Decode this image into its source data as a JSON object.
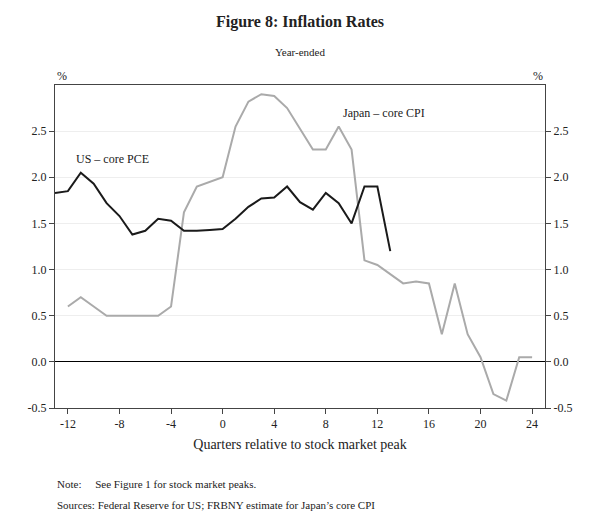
{
  "chart_data": {
    "type": "line",
    "title": "Figure 8: Inflation Rates",
    "subtitle": "Year-ended",
    "xlabel": "Quarters relative to stock market peak",
    "ylabel": "%",
    "y2label": "%",
    "note": "Note:     See Figure 1 for stock market peaks.",
    "sources": "Sources: Federal Reserve for US; FRBNY estimate for Japan’s core CPI",
    "xlim": [
      -13,
      25
    ],
    "ylim": [
      -0.5,
      3.0
    ],
    "y2lim": [
      -0.5,
      3.0
    ],
    "xticks": [
      -12,
      -8,
      -4,
      0,
      4,
      8,
      12,
      16,
      20,
      24
    ],
    "yticks": [
      -0.5,
      {
        "value": 0.0,
        "label": "0.0"
      },
      0.5,
      {
        "value": 1.0,
        "label": "1.0"
      },
      1.5,
      {
        "value": 2.0,
        "label": "2.0"
      },
      2.5
    ],
    "y2ticks": [
      -0.5,
      {
        "value": 0.0,
        "label": "0.0"
      },
      0.5,
      {
        "value": 1.0,
        "label": "1.0"
      },
      1.5,
      {
        "value": 2.0,
        "label": "2.0"
      },
      2.5
    ],
    "grid": "y",
    "series": [
      {
        "color": "#aaaaaa",
        "x": [
          -12,
          -11,
          -10,
          -9,
          -8,
          -7,
          -6,
          -5,
          -4,
          -3,
          -2,
          -1,
          0,
          1,
          2,
          3,
          4,
          5,
          6,
          7,
          8,
          9,
          10,
          11,
          12,
          13,
          14,
          15,
          16,
          17,
          18,
          19,
          20,
          21,
          22,
          23,
          24
        ],
        "values": [
          0.6,
          0.7,
          0.6,
          0.5,
          0.5,
          0.5,
          0.5,
          0.5,
          0.6,
          1.62,
          1.9,
          1.95,
          2.0,
          2.55,
          2.82,
          2.9,
          2.88,
          2.75,
          2.52,
          2.3,
          2.3,
          2.55,
          2.3,
          1.1,
          1.05,
          0.95,
          0.85,
          0.87,
          0.85,
          0.3,
          0.85,
          0.3,
          0.05,
          -0.35,
          -0.42,
          0.05,
          0.05
        ]
      },
      {
        "color": "#1a1a1a",
        "x": [
          -13,
          -12,
          -11,
          -10,
          -9,
          -8,
          -7,
          -6,
          -5,
          -4,
          -3,
          -2,
          -1,
          0,
          1,
          2,
          3,
          4,
          5,
          6,
          7,
          8,
          9,
          10,
          11,
          12,
          13
        ],
        "values": [
          1.83,
          1.85,
          2.05,
          1.93,
          1.72,
          1.58,
          1.38,
          1.42,
          1.55,
          1.53,
          1.42,
          1.42,
          1.43,
          1.44,
          1.55,
          1.68,
          1.77,
          1.78,
          1.9,
          1.73,
          1.65,
          1.83,
          1.72,
          1.5,
          1.9,
          1.9,
          1.2
        ]
      }
    ],
    "annotations": [
      {
        "text": "US – core PCE",
        "x": -11.5,
        "y": 2.1
      },
      {
        "text": "Japan – core CPI",
        "x": 9.2,
        "y": 2.6
      }
    ]
  }
}
